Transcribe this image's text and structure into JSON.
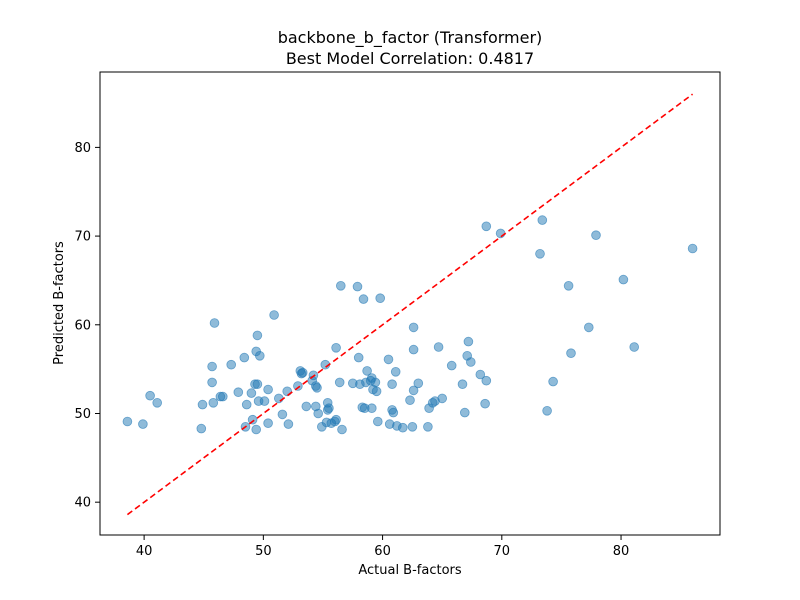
{
  "chart_data": {
    "type": "scatter",
    "title": "backbone_b_factor (Transformer)",
    "subtitle": "Best Model Correlation: 0.4817",
    "xlabel": "Actual B-factors",
    "ylabel": "Predicted B-factors",
    "xlim": [
      36.3,
      88.3
    ],
    "ylim": [
      36.3,
      88.5
    ],
    "xticks": [
      40,
      50,
      60,
      70,
      80
    ],
    "yticks": [
      40,
      50,
      60,
      70,
      80
    ],
    "grid": false,
    "point_color": "#1f77b4",
    "reference_line": {
      "color": "#ff0000",
      "style": "dashed",
      "x": [
        38.6,
        86.0
      ],
      "y": [
        38.6,
        86.0
      ]
    },
    "points": [
      [
        38.6,
        49.1
      ],
      [
        39.9,
        48.8
      ],
      [
        40.5,
        52.0
      ],
      [
        41.1,
        51.2
      ],
      [
        44.8,
        48.3
      ],
      [
        44.9,
        51.0
      ],
      [
        45.7,
        53.5
      ],
      [
        45.7,
        55.3
      ],
      [
        45.8,
        51.2
      ],
      [
        45.9,
        60.2
      ],
      [
        46.4,
        51.9
      ],
      [
        46.6,
        51.9
      ],
      [
        47.3,
        55.5
      ],
      [
        47.9,
        52.4
      ],
      [
        48.4,
        56.3
      ],
      [
        48.5,
        48.5
      ],
      [
        48.6,
        51.0
      ],
      [
        49.0,
        52.3
      ],
      [
        49.1,
        49.3
      ],
      [
        49.3,
        53.3
      ],
      [
        49.4,
        48.2
      ],
      [
        49.4,
        57.0
      ],
      [
        49.5,
        58.8
      ],
      [
        49.5,
        53.3
      ],
      [
        49.6,
        51.4
      ],
      [
        49.7,
        56.5
      ],
      [
        50.1,
        51.4
      ],
      [
        50.4,
        52.7
      ],
      [
        50.4,
        48.9
      ],
      [
        50.9,
        61.1
      ],
      [
        51.3,
        51.7
      ],
      [
        51.6,
        49.9
      ],
      [
        52.0,
        52.5
      ],
      [
        52.1,
        48.8
      ],
      [
        52.9,
        53.1
      ],
      [
        53.1,
        54.8
      ],
      [
        53.2,
        54.5
      ],
      [
        53.3,
        54.6
      ],
      [
        53.6,
        50.8
      ],
      [
        54.1,
        53.7
      ],
      [
        54.2,
        54.3
      ],
      [
        54.4,
        50.8
      ],
      [
        54.4,
        53.1
      ],
      [
        54.5,
        52.9
      ],
      [
        54.6,
        50.0
      ],
      [
        54.9,
        48.5
      ],
      [
        55.2,
        55.5
      ],
      [
        55.3,
        49.0
      ],
      [
        55.4,
        51.2
      ],
      [
        55.4,
        50.4
      ],
      [
        55.5,
        50.6
      ],
      [
        55.7,
        48.9
      ],
      [
        56.0,
        49.1
      ],
      [
        56.1,
        49.3
      ],
      [
        56.1,
        57.4
      ],
      [
        56.4,
        53.5
      ],
      [
        56.5,
        64.4
      ],
      [
        56.6,
        48.2
      ],
      [
        57.5,
        53.4
      ],
      [
        57.9,
        64.3
      ],
      [
        58.0,
        56.3
      ],
      [
        58.1,
        53.3
      ],
      [
        58.3,
        50.7
      ],
      [
        58.4,
        62.9
      ],
      [
        58.5,
        50.6
      ],
      [
        58.6,
        53.5
      ],
      [
        58.7,
        54.8
      ],
      [
        59.0,
        53.7
      ],
      [
        59.1,
        50.6
      ],
      [
        59.1,
        54.0
      ],
      [
        59.2,
        52.7
      ],
      [
        59.4,
        53.5
      ],
      [
        59.5,
        52.5
      ],
      [
        59.6,
        49.1
      ],
      [
        59.8,
        63.0
      ],
      [
        60.5,
        56.1
      ],
      [
        60.6,
        48.8
      ],
      [
        60.8,
        53.3
      ],
      [
        60.8,
        50.4
      ],
      [
        60.9,
        50.1
      ],
      [
        61.1,
        54.7
      ],
      [
        61.2,
        48.6
      ],
      [
        61.7,
        48.4
      ],
      [
        62.3,
        51.5
      ],
      [
        62.5,
        48.5
      ],
      [
        62.6,
        59.7
      ],
      [
        62.6,
        57.2
      ],
      [
        62.6,
        52.6
      ],
      [
        63.0,
        53.4
      ],
      [
        63.8,
        48.5
      ],
      [
        63.9,
        50.6
      ],
      [
        64.2,
        51.2
      ],
      [
        64.4,
        51.4
      ],
      [
        64.7,
        57.5
      ],
      [
        65.0,
        51.7
      ],
      [
        65.8,
        55.4
      ],
      [
        66.7,
        53.3
      ],
      [
        66.9,
        50.1
      ],
      [
        67.1,
        56.5
      ],
      [
        67.2,
        58.1
      ],
      [
        67.4,
        55.8
      ],
      [
        68.2,
        54.4
      ],
      [
        68.6,
        51.1
      ],
      [
        68.7,
        53.7
      ],
      [
        68.7,
        71.1
      ],
      [
        69.9,
        70.3
      ],
      [
        73.2,
        68.0
      ],
      [
        73.4,
        71.8
      ],
      [
        73.8,
        50.3
      ],
      [
        74.3,
        53.6
      ],
      [
        75.6,
        64.4
      ],
      [
        75.8,
        56.8
      ],
      [
        77.3,
        59.7
      ],
      [
        77.9,
        70.1
      ],
      [
        80.2,
        65.1
      ],
      [
        81.1,
        57.5
      ],
      [
        86.0,
        68.6
      ]
    ]
  }
}
